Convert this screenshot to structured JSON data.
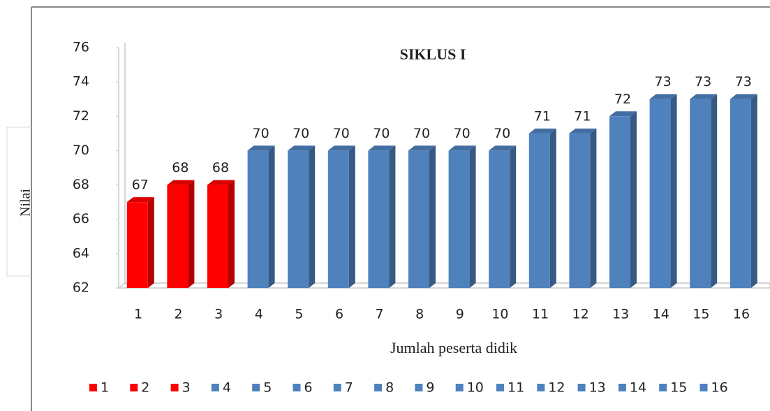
{
  "chart_data": {
    "type": "bar3d",
    "title": "SIKLUS I",
    "x_label": "Jumlah  peserta didik",
    "y_label": "Nilai",
    "categories": [
      "1",
      "2",
      "3",
      "4",
      "5",
      "6",
      "7",
      "8",
      "9",
      "10",
      "11",
      "12",
      "13",
      "14",
      "15",
      "16"
    ],
    "values": [
      67,
      68,
      68,
      70,
      70,
      70,
      70,
      70,
      70,
      70,
      71,
      71,
      72,
      73,
      73,
      73
    ],
    "colors": [
      "#ff0000",
      "#ff0000",
      "#ff0000",
      "#4f81bd",
      "#4f81bd",
      "#4f81bd",
      "#4f81bd",
      "#4f81bd",
      "#4f81bd",
      "#4f81bd",
      "#4f81bd",
      "#4f81bd",
      "#4f81bd",
      "#4f81bd",
      "#4f81bd",
      "#4f81bd"
    ],
    "ylim": [
      62,
      76
    ],
    "yticks": [
      62,
      64,
      66,
      68,
      70,
      72,
      74,
      76
    ],
    "grid": false,
    "legend": "bottom"
  }
}
